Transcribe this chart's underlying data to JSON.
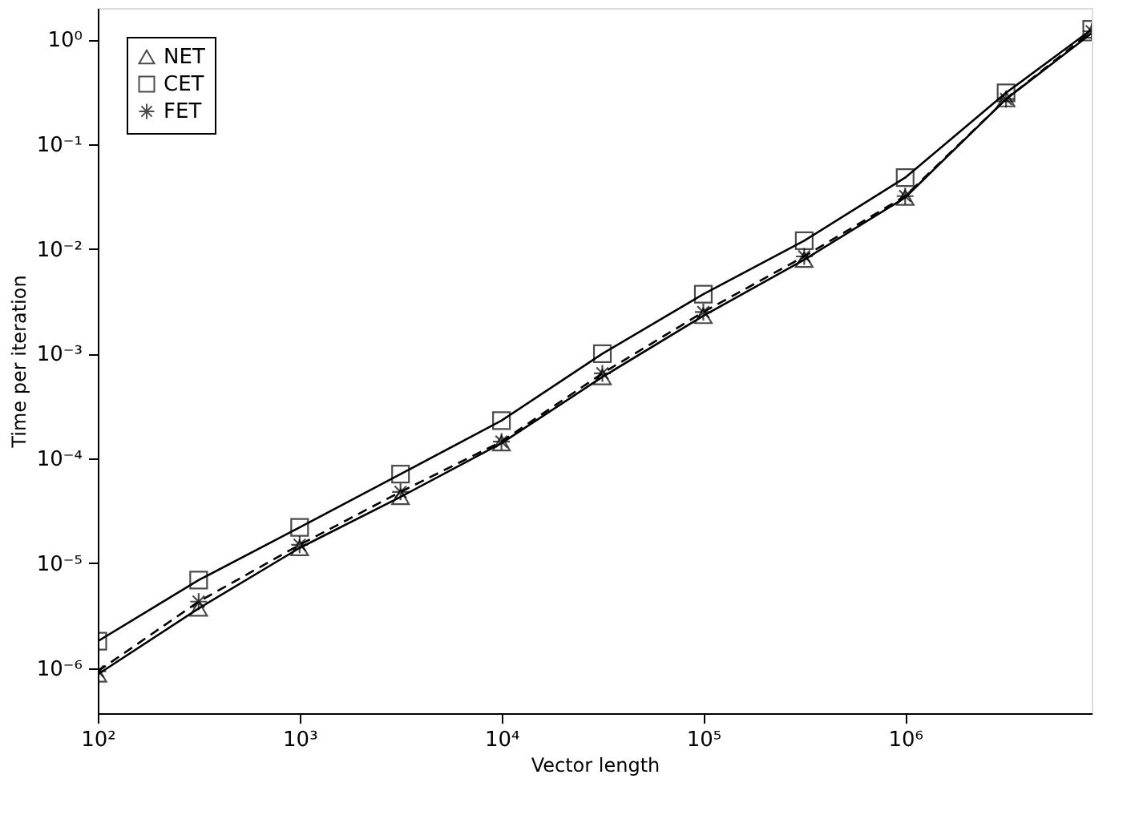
{
  "chart_data": {
    "type": "line",
    "xlabel": "Vector length",
    "ylabel": "Time per iteration",
    "x": [
      100,
      316,
      1000,
      3162,
      10000,
      31623,
      100000,
      316228,
      1000000,
      3162278,
      8400000
    ],
    "series": [
      {
        "name": "NET",
        "color": "#000000",
        "marker": "triangle",
        "line_style": "solid",
        "values": [
          8.7e-07,
          3.7e-06,
          1.4e-05,
          4.3e-05,
          0.00014,
          0.0006,
          0.0023,
          0.0079,
          0.031,
          0.27,
          1.15
        ]
      },
      {
        "name": "CET",
        "color": "#000000",
        "marker": "square",
        "line_style": "solid",
        "values": [
          1.8e-06,
          6.9e-06,
          2.2e-05,
          7.1e-05,
          0.00023,
          0.001,
          0.0037,
          0.012,
          0.048,
          0.31,
          1.25
        ]
      },
      {
        "name": "FET",
        "color": "#000000",
        "marker": "cross",
        "line_style": "dashed",
        "values": [
          9.3e-07,
          4.3e-06,
          1.5e-05,
          4.8e-05,
          0.000145,
          0.00065,
          0.0025,
          0.0085,
          0.032,
          0.27,
          1.2
        ]
      }
    ],
    "log": "xy",
    "grid": false,
    "legend": "top left",
    "xlim": [
      100,
      8400000
    ],
    "ylim": [
      3.7e-07,
      2
    ],
    "xticks": [
      {
        "value": 100,
        "label": "10²"
      },
      {
        "value": 1000,
        "label": "10³"
      },
      {
        "value": 10000,
        "label": "10⁴"
      },
      {
        "value": 100000,
        "label": "10⁵"
      },
      {
        "value": 1000000,
        "label": "10⁶"
      }
    ],
    "yticks": [
      {
        "value": 1e-06,
        "label": "10⁻⁶"
      },
      {
        "value": 1e-05,
        "label": "10⁻⁵"
      },
      {
        "value": 0.0001,
        "label": "10⁻⁴"
      },
      {
        "value": 0.001,
        "label": "10⁻³"
      },
      {
        "value": 0.01,
        "label": "10⁻²"
      },
      {
        "value": 0.1,
        "label": "10⁻¹"
      },
      {
        "value": 1,
        "label": "10⁰"
      }
    ]
  }
}
